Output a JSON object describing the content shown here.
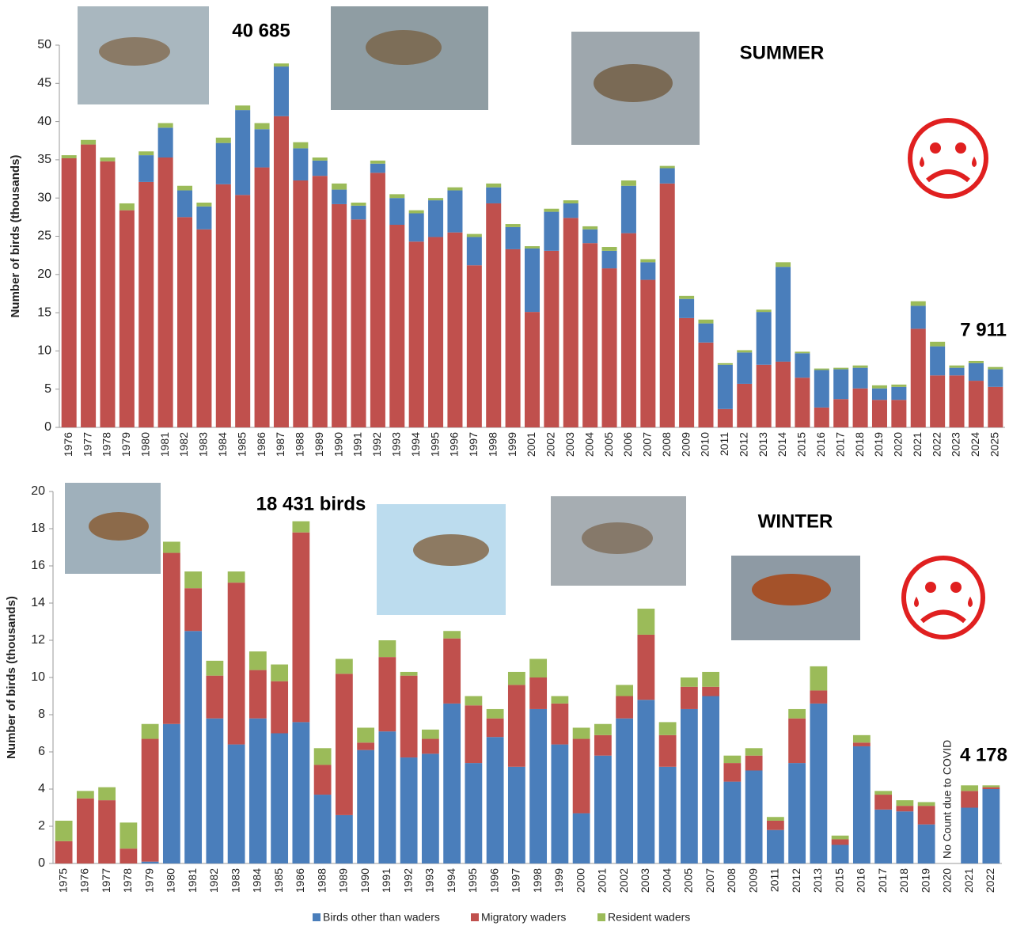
{
  "chart_data": [
    {
      "type": "stacked_bar",
      "y_label": "Number of birds (thousands)",
      "annotations": [
        "40 685",
        "SUMMER",
        "7 911"
      ],
      "categories": [
        "1976",
        "1977",
        "1978",
        "1979",
        "1980",
        "1981",
        "1982",
        "1983",
        "1984",
        "1985",
        "1986",
        "1987",
        "1988",
        "1989",
        "1990",
        "1991",
        "1992",
        "1993",
        "1994",
        "1995",
        "1996",
        "1997",
        "1998",
        "1999",
        "2001",
        "2002",
        "2003",
        "2004",
        "2005",
        "2006",
        "2007",
        "2008",
        "2009",
        "2010",
        "2011",
        "2012",
        "2013",
        "2014",
        "2015",
        "2016",
        "2017",
        "2018",
        "2019",
        "2020",
        "2021",
        "2022",
        "2023",
        "2024",
        "2025"
      ],
      "series": [
        {
          "color": "#c0504d",
          "values": [
            35.2,
            37,
            34.8,
            28.4,
            32.1,
            35.3,
            27.5,
            25.9,
            31.8,
            30.4,
            34,
            40.7,
            32.3,
            32.9,
            29.2,
            27.2,
            33.3,
            26.5,
            24.3,
            24.9,
            25.5,
            21.2,
            29.3,
            23.3,
            15.1,
            23.1,
            27.4,
            24.1,
            20.8,
            25.4,
            19.3,
            31.9,
            14.3,
            11.1,
            2.4,
            5.7,
            8.2,
            8.6,
            6.5,
            2.6,
            3.7,
            5.1,
            3.6,
            3.6,
            12.9,
            6.8,
            6.8,
            6.1,
            5.3
          ]
        },
        {
          "color": "#4a7ebb",
          "values": [
            0,
            0,
            0,
            0,
            3.5,
            3.9,
            3.5,
            3.0,
            5.4,
            11.1,
            5,
            6.5,
            4.2,
            2.0,
            1.9,
            1.8,
            1.2,
            3.5,
            3.7,
            4.8,
            5.5,
            3.7,
            2.1,
            2.9,
            8.3,
            5.1,
            1.9,
            1.8,
            2.3,
            6.2,
            2.3,
            2,
            2.5,
            2.5,
            5.8,
            4.1,
            6.9,
            12.4,
            3.2,
            4.9,
            3.9,
            2.7,
            1.5,
            1.7,
            3.0,
            3.8,
            1.0,
            2.3,
            2.3
          ]
        },
        {
          "color": "#9bbb59",
          "values": [
            0.4,
            0.6,
            0.5,
            0.9,
            0.5,
            0.6,
            0.6,
            0.5,
            0.7,
            0.6,
            0.8,
            0.4,
            0.8,
            0.4,
            0.8,
            0.4,
            0.4,
            0.5,
            0.4,
            0.3,
            0.4,
            0.4,
            0.5,
            0.4,
            0.3,
            0.4,
            0.4,
            0.4,
            0.5,
            0.7,
            0.4,
            0.3,
            0.4,
            0.5,
            0.2,
            0.3,
            0.3,
            0.6,
            0.2,
            0.2,
            0.2,
            0.3,
            0.4,
            0.3,
            0.6,
            0.6,
            0.3,
            0.3,
            0.3
          ]
        }
      ],
      "ylim": [
        0,
        50
      ],
      "yticks": [
        0,
        5,
        10,
        15,
        20,
        25,
        30,
        35,
        40,
        45,
        50
      ]
    },
    {
      "type": "stacked_bar",
      "y_label": "Number of birds (thousands)",
      "annotations": [
        "18 431 birds",
        "WINTER",
        "4 178",
        "No Count due to COVID"
      ],
      "categories": [
        "1975",
        "1976",
        "1977",
        "1978",
        "1979",
        "1980",
        "1981",
        "1982",
        "1983",
        "1984",
        "1985",
        "1986",
        "1988",
        "1989",
        "1990",
        "1991",
        "1992",
        "1993",
        "1994",
        "1995",
        "1996",
        "1997",
        "1998",
        "1999",
        "2000",
        "2001",
        "2002",
        "2003",
        "2004",
        "2005",
        "2007",
        "2008",
        "2009",
        "2011",
        "2012",
        "2013",
        "2015",
        "2016",
        "2017",
        "2018",
        "2019",
        "2020",
        "2021",
        "2022"
      ],
      "series": [
        {
          "name": "Birds other than waders",
          "color": "#4a7ebb",
          "values": [
            0,
            0,
            0,
            0,
            0.1,
            7.5,
            12.5,
            7.8,
            6.4,
            7.8,
            7.0,
            7.6,
            3.7,
            2.6,
            6.1,
            7.1,
            5.7,
            5.9,
            8.6,
            5.4,
            6.8,
            5.2,
            8.3,
            6.4,
            2.7,
            5.8,
            7.8,
            8.8,
            5.2,
            8.3,
            9.0,
            4.4,
            5.0,
            1.8,
            5.4,
            8.6,
            1.0,
            6.3,
            2.9,
            2.8,
            2.1,
            null,
            3.0,
            4.0
          ]
        },
        {
          "name": "Migratory waders",
          "color": "#c0504d",
          "values": [
            1.2,
            3.5,
            3.4,
            0.8,
            6.6,
            9.2,
            2.3,
            2.3,
            8.7,
            2.6,
            2.8,
            10.2,
            1.6,
            7.6,
            0.4,
            4.0,
            4.4,
            0.8,
            3.5,
            3.1,
            1.0,
            4.4,
            1.7,
            2.2,
            4.0,
            1.1,
            1.2,
            3.5,
            1.7,
            1.2,
            0.5,
            1.0,
            0.8,
            0.5,
            2.4,
            0.7,
            0.3,
            0.2,
            0.8,
            0.3,
            1.0,
            null,
            0.9,
            0.1
          ]
        },
        {
          "name": "Resident waders",
          "color": "#9bbb59",
          "values": [
            1.1,
            0.4,
            0.7,
            1.4,
            0.8,
            0.6,
            0.9,
            0.8,
            0.6,
            1.0,
            0.9,
            0.6,
            0.9,
            0.8,
            0.8,
            0.9,
            0.2,
            0.5,
            0.4,
            0.5,
            0.5,
            0.7,
            1.0,
            0.4,
            0.6,
            0.6,
            0.6,
            1.4,
            0.7,
            0.5,
            0.8,
            0.4,
            0.4,
            0.2,
            0.5,
            1.3,
            0.2,
            0.4,
            0.2,
            0.3,
            0.2,
            null,
            0.3,
            0.1
          ]
        }
      ],
      "ylim": [
        0,
        20
      ],
      "yticks": [
        0,
        2,
        4,
        6,
        8,
        10,
        12,
        14,
        16,
        18,
        20
      ]
    }
  ]
}
